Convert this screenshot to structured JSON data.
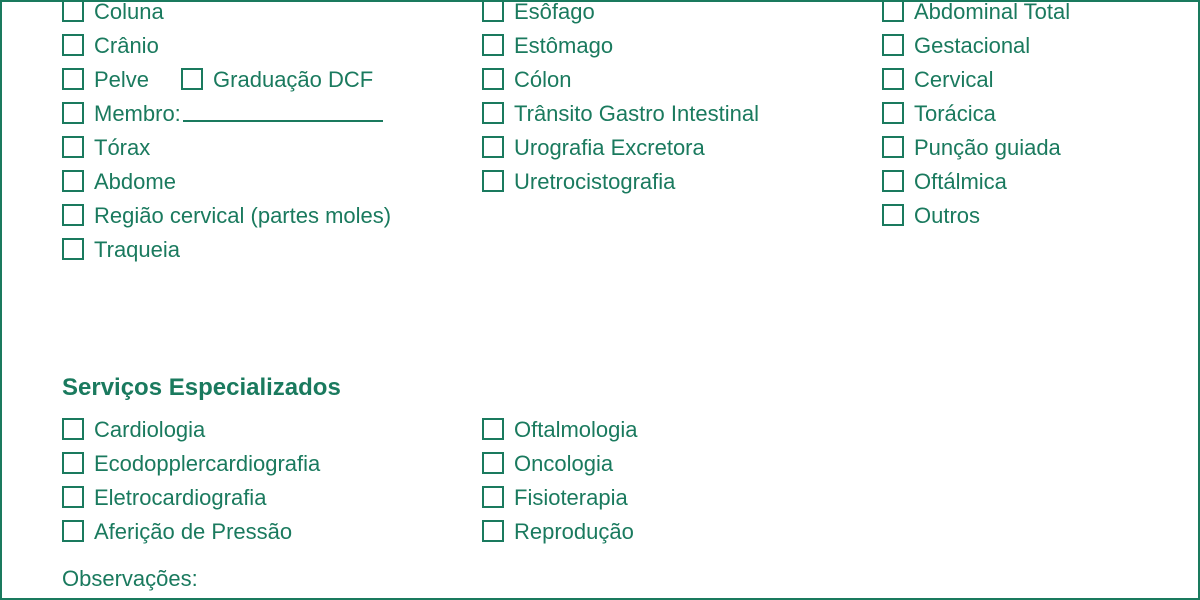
{
  "colors": {
    "primary": "#1a7a5e",
    "background": "#ffffff"
  },
  "typography": {
    "base_fontsize": 22,
    "title_fontsize": 24,
    "font_family": "Arial"
  },
  "checkbox": {
    "size": 22,
    "border_width": 2
  },
  "top_section": {
    "col1": [
      {
        "label": "Coluna"
      },
      {
        "label": "Crânio"
      },
      {
        "label": "Pelve",
        "extra": {
          "label": "Graduação DCF"
        }
      },
      {
        "label": "Membro:",
        "has_underline": true
      },
      {
        "label": "Tórax"
      },
      {
        "label": "Abdome"
      },
      {
        "label": "Região cervical (partes moles)"
      },
      {
        "label": "Traqueia"
      }
    ],
    "col2": [
      {
        "label": "Esôfago"
      },
      {
        "label": "Estômago"
      },
      {
        "label": "Cólon"
      },
      {
        "label": "Trânsito Gastro Intestinal"
      },
      {
        "label": "Urografia Excretora"
      },
      {
        "label": "Uretrocistografia"
      }
    ],
    "col3": [
      {
        "label": "Abdominal Total"
      },
      {
        "label": "Gestacional"
      },
      {
        "label": "Cervical"
      },
      {
        "label": "Torácica"
      },
      {
        "label": "Punção guiada"
      },
      {
        "label": "Oftálmica"
      },
      {
        "label": "Outros"
      }
    ]
  },
  "services_title": "Serviços Especializados",
  "services": {
    "col1": [
      {
        "label": "Cardiologia"
      },
      {
        "label": "Ecodopplercardiografia"
      },
      {
        "label": "Eletrocardiografia"
      },
      {
        "label": "Aferição de Pressão"
      }
    ],
    "col2": [
      {
        "label": "Oftalmologia"
      },
      {
        "label": "Oncologia"
      },
      {
        "label": "Fisioterapia"
      },
      {
        "label": "Reprodução"
      }
    ]
  },
  "observations_label": "Observações:"
}
